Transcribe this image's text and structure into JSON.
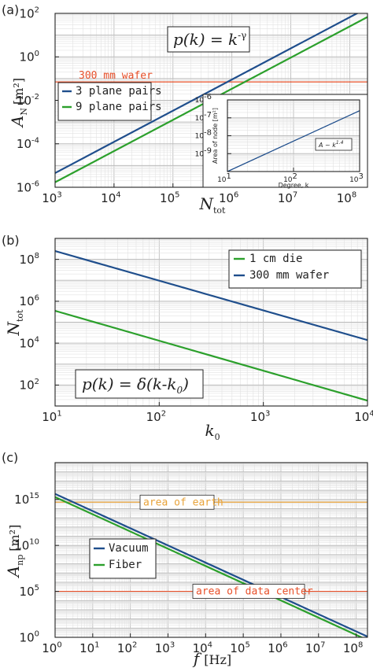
{
  "chart_data": [
    {
      "type": "line",
      "panel_label": "(a)",
      "xlabel": "N",
      "xlabel_sub": "tot",
      "ylabel": "A",
      "ylabel_sub": "N",
      "ylabel_unit": "[m²]",
      "xlim": [
        1000,
        200000000
      ],
      "ylim": [
        1e-06,
        100
      ],
      "log_x": true,
      "log_y": true,
      "grid": true,
      "x_ticks": [
        {
          "base": "10",
          "exp": "3",
          "v": 1000
        },
        {
          "base": "10",
          "exp": "4",
          "v": 10000
        },
        {
          "base": "10",
          "exp": "5",
          "v": 100000
        },
        {
          "base": "10",
          "exp": "6",
          "v": 1000000
        },
        {
          "base": "10",
          "exp": "7",
          "v": 10000000
        },
        {
          "base": "10",
          "exp": "8",
          "v": 100000000
        }
      ],
      "y_ticks": [
        {
          "base": "10",
          "exp": "-6",
          "v": 1e-06
        },
        {
          "base": "10",
          "exp": "-4",
          "v": 0.0001
        },
        {
          "base": "10",
          "exp": "-2",
          "v": 0.01
        },
        {
          "base": "10",
          "exp": "0",
          "v": 1
        },
        {
          "base": "10",
          "exp": "2",
          "v": 100
        }
      ],
      "series": [
        {
          "name": "3 plane pairs",
          "color": "#1f4e8c",
          "x": [
            1000,
            200000000
          ],
          "y": [
            4.5e-06,
            180
          ]
        },
        {
          "name": "9 plane pairs",
          "color": "#2ca02c",
          "x": [
            1000,
            200000000
          ],
          "y": [
            1.7e-06,
            68
          ]
        }
      ],
      "reference_lines": [
        {
          "label": "300 mm wafer",
          "color": "#e8502a",
          "y": 0.07
        }
      ],
      "legend_position": "left",
      "formula": {
        "lhs": "p(k) = k",
        "exp": "-γ"
      },
      "inset": {
        "xlabel": "Degree, k",
        "ylabel": "Area of node [m²]",
        "xlim": [
          10,
          1000
        ],
        "ylim": [
          1e-10,
          1e-06
        ],
        "log_x": true,
        "log_y": true,
        "x_ticks": [
          {
            "base": "10",
            "exp": "1",
            "v": 10
          },
          {
            "base": "10",
            "exp": "2",
            "v": 100
          },
          {
            "base": "10",
            "exp": "3",
            "v": 1000
          }
        ],
        "y_ticks": [
          {
            "base": "10",
            "exp": "-9",
            "v": 1e-09
          },
          {
            "base": "10",
            "exp": "-8",
            "v": 1e-08
          },
          {
            "base": "10",
            "exp": "-7",
            "v": 1e-07
          },
          {
            "base": "10",
            "exp": "-6",
            "v": 1e-06
          }
        ],
        "series": [
          {
            "color": "#1f4e8c",
            "x": [
              10,
              1000
            ],
            "y": 1e-10,
            "y_end": 2.5e-07
          }
        ],
        "annotation": {
          "lhs": "A ~ k",
          "exp": "1.4"
        }
      }
    },
    {
      "type": "line",
      "panel_label": "(b)",
      "xlabel": "k",
      "xlabel_sub": "0",
      "ylabel": "N",
      "ylabel_sub": "tot",
      "xlim": [
        10,
        10000
      ],
      "ylim": [
        10,
        1000000000
      ],
      "log_x": true,
      "log_y": true,
      "grid": true,
      "x_ticks": [
        {
          "base": "10",
          "exp": "1",
          "v": 10
        },
        {
          "base": "10",
          "exp": "2",
          "v": 100
        },
        {
          "base": "10",
          "exp": "3",
          "v": 1000
        },
        {
          "base": "10",
          "exp": "4",
          "v": 10000
        }
      ],
      "y_ticks": [
        {
          "base": "10",
          "exp": "2",
          "v": 100
        },
        {
          "base": "10",
          "exp": "4",
          "v": 10000
        },
        {
          "base": "10",
          "exp": "6",
          "v": 1000000
        },
        {
          "base": "10",
          "exp": "8",
          "v": 100000000
        }
      ],
      "series": [
        {
          "name": "1 cm die",
          "color": "#2ca02c",
          "x": [
            10,
            10000
          ],
          "y": [
            350000,
            18
          ]
        },
        {
          "name": "300 mm wafer",
          "color": "#1f4e8c",
          "x": [
            10,
            10000
          ],
          "y": [
            250000000,
            14000
          ]
        }
      ],
      "legend_position": "top-right",
      "formula": {
        "text": "p(k) = δ(k-k",
        "sub": "0",
        "tail": ")"
      }
    },
    {
      "type": "line",
      "panel_label": "(c)",
      "xlabel": "f",
      "xlabel_unit": "[Hz]",
      "ylabel": "A",
      "ylabel_sub": "np",
      "ylabel_unit": "[m²]",
      "xlim": [
        1,
        200000000
      ],
      "ylim": [
        1,
        10000000000000000000
      ],
      "log_x": true,
      "log_y": true,
      "grid": true,
      "x_ticks": [
        {
          "base": "10",
          "exp": "0",
          "v": 1
        },
        {
          "base": "10",
          "exp": "1",
          "v": 10
        },
        {
          "base": "10",
          "exp": "2",
          "v": 100
        },
        {
          "base": "10",
          "exp": "3",
          "v": 1000
        },
        {
          "base": "10",
          "exp": "4",
          "v": 10000
        },
        {
          "base": "10",
          "exp": "5",
          "v": 100000
        },
        {
          "base": "10",
          "exp": "6",
          "v": 1000000
        },
        {
          "base": "10",
          "exp": "7",
          "v": 10000000
        },
        {
          "base": "10",
          "exp": "8",
          "v": 100000000
        }
      ],
      "y_ticks": [
        {
          "base": "10",
          "exp": "0",
          "v": 1
        },
        {
          "base": "10",
          "exp": "5",
          "v": 100000
        },
        {
          "base": "10",
          "exp": "10",
          "v": 10000000000
        },
        {
          "base": "10",
          "exp": "15",
          "v": 1000000000000000
        }
      ],
      "series": [
        {
          "name": "Vacuum",
          "color": "#1f4e8c",
          "x": [
            1,
            200000000
          ],
          "y": [
            4000000000000000,
            1.2
          ]
        },
        {
          "name": "Fiber",
          "color": "#2ca02c",
          "x": [
            1,
            200000000
          ],
          "y": [
            1800000000000000,
            0.5
          ]
        }
      ],
      "reference_lines": [
        {
          "label": "area of earth",
          "color": "#e8a33a",
          "y": 500000000000000
        },
        {
          "label": "area of data center",
          "color": "#e8502a",
          "y": 100000
        }
      ],
      "legend_position": "left"
    }
  ]
}
